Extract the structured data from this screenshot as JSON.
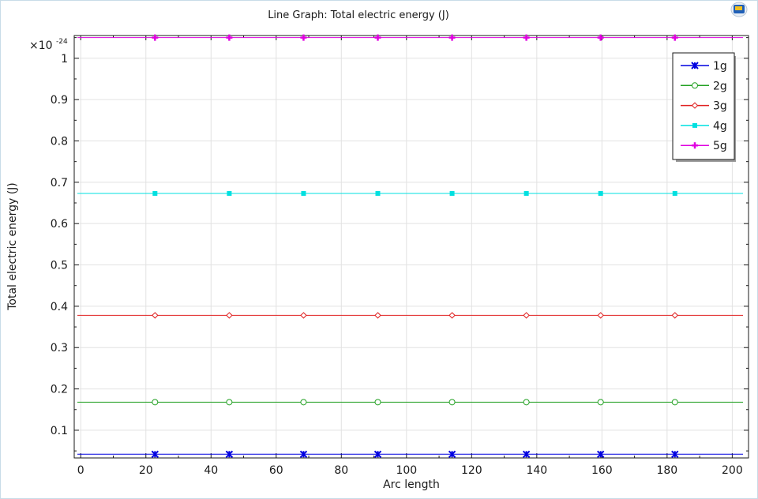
{
  "chart_data": {
    "type": "line",
    "title": "Line Graph: Total electric energy (J)",
    "xlabel": "Arc length",
    "ylabel": "Total electric energy (J)",
    "y_exponent_label": "×10",
    "y_exponent_power": "-24",
    "xlim": [
      -2,
      205
    ],
    "ylim": [
      0.033,
      1.055
    ],
    "x_ticks": [
      0,
      20,
      40,
      60,
      80,
      100,
      120,
      140,
      160,
      180,
      200
    ],
    "y_ticks": [
      0.1,
      0.2,
      0.3,
      0.4,
      0.5,
      0.6,
      0.7,
      0.8,
      0.9,
      1
    ],
    "y_tick_labels": [
      "0.1",
      "0.2",
      "0.3",
      "0.4",
      "0.5",
      "0.6",
      "0.7",
      "0.8",
      "0.9",
      "1"
    ],
    "grid": true,
    "legend_position": "top-right",
    "marker_x": [
      22.8,
      45.6,
      68.4,
      91.2,
      114,
      136.8,
      159.6,
      182.4
    ],
    "series": [
      {
        "name": "1g",
        "value": 0.042,
        "color": "#0000e0",
        "marker": "star"
      },
      {
        "name": "2g",
        "value": 0.168,
        "color": "#22a022",
        "marker": "circle"
      },
      {
        "name": "3g",
        "value": 0.378,
        "color": "#e02020",
        "marker": "diamond"
      },
      {
        "name": "4g",
        "value": 0.673,
        "color": "#00e0e0",
        "marker": "square"
      },
      {
        "name": "5g",
        "value": 1.05,
        "color": "#e000e0",
        "marker": "plus"
      }
    ]
  }
}
